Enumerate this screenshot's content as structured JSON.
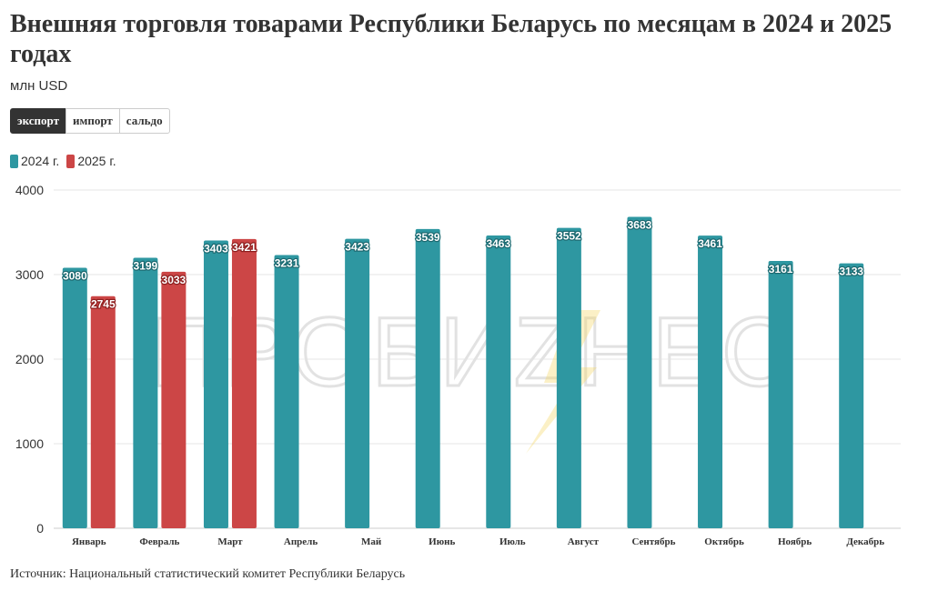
{
  "title": "Внешняя торговля товарами Республики Беларусь по месяцам в 2024 и 2025 годах",
  "subtitle": "млн USD",
  "tabs": [
    {
      "label": "экспорт",
      "active": true
    },
    {
      "label": "импорт",
      "active": false
    },
    {
      "label": "сальдо",
      "active": false
    }
  ],
  "watermark": "ПРОБИZНЕС",
  "source": "Источник: Национальный статистический комитет Республики Беларусь",
  "chart_data": {
    "type": "bar",
    "categories": [
      "Январь",
      "Февраль",
      "Март",
      "Апрель",
      "Май",
      "Июнь",
      "Июль",
      "Август",
      "Сентябрь",
      "Октябрь",
      "Ноябрь",
      "Декабрь"
    ],
    "series": [
      {
        "name": "2024 г.",
        "color": "#2e97a1",
        "values": [
          3080,
          3199,
          3403,
          3231,
          3423,
          3539,
          3463,
          3552,
          3683,
          3461,
          3161,
          3133
        ]
      },
      {
        "name": "2025 г.",
        "color": "#cc4646",
        "values": [
          2745,
          3033,
          3421,
          null,
          null,
          null,
          null,
          null,
          null,
          null,
          null,
          null
        ]
      }
    ],
    "y_ticks": [
      0,
      1000,
      2000,
      3000,
      4000
    ],
    "ylim": [
      0,
      4000
    ],
    "grid": true,
    "legend": "top-left",
    "data_labels": true
  }
}
